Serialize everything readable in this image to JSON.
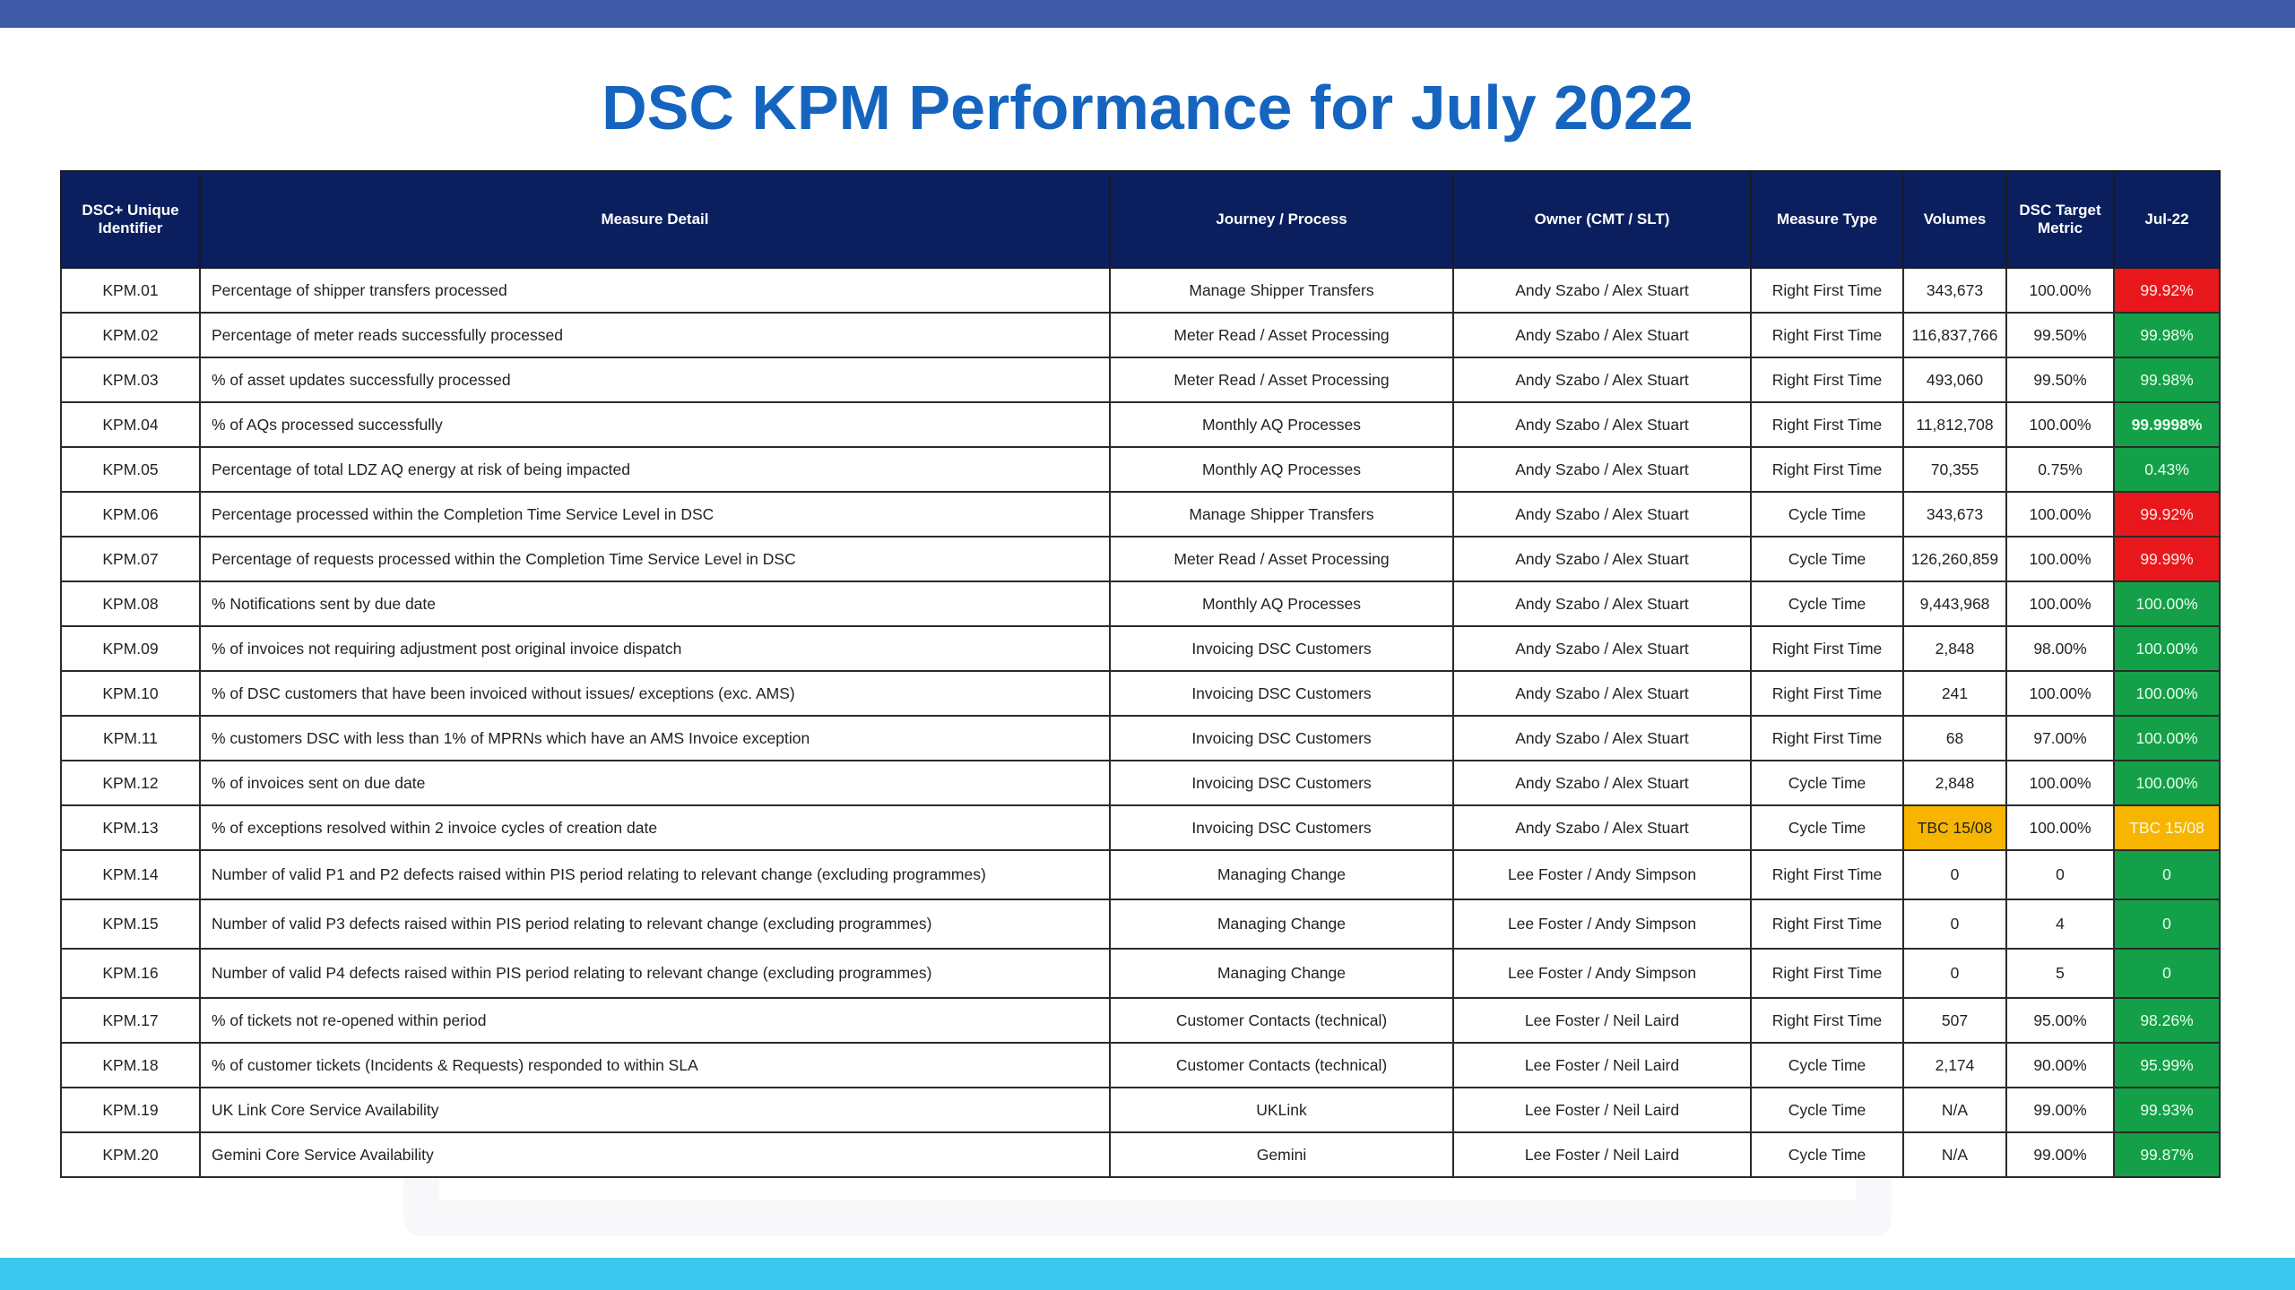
{
  "title": "DSC KPM Performance for July 2022",
  "colors": {
    "header_bg": "#0b1f5e",
    "title": "#1565c0",
    "top_band": "#3e5aa6",
    "bottom_band": "#3bc8ee",
    "red": "#e8171b",
    "green": "#14a048",
    "amber": "#f7b500"
  },
  "headers": {
    "id": "DSC+ Unique Identifier",
    "detail": "Measure Detail",
    "journey": "Journey / Process",
    "owner": "Owner (CMT / SLT)",
    "type": "Measure Type",
    "volumes": "Volumes",
    "target": "DSC Target Metric",
    "month": "Jul-22"
  },
  "rows": [
    {
      "id": "KPM.01",
      "detail": "Percentage of shipper transfers processed",
      "journey": "Manage Shipper Transfers",
      "owner": "Andy Szabo / Alex Stuart",
      "type": "Right First Time",
      "volumes": "343,673",
      "target": "100.00%",
      "result": "99.92%",
      "status": "red"
    },
    {
      "id": "KPM.02",
      "detail": "Percentage of meter reads successfully processed",
      "journey": "Meter Read / Asset Processing",
      "owner": "Andy Szabo / Alex Stuart",
      "type": "Right First Time",
      "volumes": "116,837,766",
      "target": "99.50%",
      "result": "99.98%",
      "status": "green"
    },
    {
      "id": "KPM.03",
      "detail": "% of asset updates successfully processed",
      "journey": "Meter Read / Asset Processing",
      "owner": "Andy Szabo / Alex Stuart",
      "type": "Right First Time",
      "volumes": "493,060",
      "target": "99.50%",
      "result": "99.98%",
      "status": "green"
    },
    {
      "id": "KPM.04",
      "detail": "% of AQs processed successfully",
      "journey": "Monthly AQ Processes",
      "owner": "Andy Szabo / Alex Stuart",
      "type": "Right First Time",
      "volumes": "11,812,708",
      "target": "100.00%",
      "result": "99.9998%",
      "status": "green"
    },
    {
      "id": "KPM.05",
      "detail": "Percentage of total LDZ AQ energy at risk of being impacted",
      "journey": "Monthly AQ Processes",
      "owner": "Andy Szabo / Alex Stuart",
      "type": "Right First Time",
      "volumes": "70,355",
      "target": "0.75%",
      "result": "0.43%",
      "status": "green"
    },
    {
      "id": "KPM.06",
      "detail": "Percentage processed within the Completion Time Service Level in DSC",
      "journey": "Manage Shipper Transfers",
      "owner": "Andy Szabo / Alex Stuart",
      "type": "Cycle Time",
      "volumes": "343,673",
      "target": "100.00%",
      "result": "99.92%",
      "status": "red"
    },
    {
      "id": "KPM.07",
      "detail": "Percentage of requests processed within the Completion Time Service Level in DSC",
      "journey": "Meter Read / Asset Processing",
      "owner": "Andy Szabo / Alex Stuart",
      "type": "Cycle Time",
      "volumes": "126,260,859",
      "target": "100.00%",
      "result": "99.99%",
      "status": "red"
    },
    {
      "id": "KPM.08",
      "detail": "% Notifications sent by due date",
      "journey": "Monthly AQ Processes",
      "owner": "Andy Szabo / Alex Stuart",
      "type": "Cycle Time",
      "volumes": "9,443,968",
      "target": "100.00%",
      "result": "100.00%",
      "status": "green"
    },
    {
      "id": "KPM.09",
      "detail": "% of invoices not requiring adjustment post original invoice dispatch",
      "journey": "Invoicing DSC Customers",
      "owner": "Andy Szabo / Alex Stuart",
      "type": "Right First Time",
      "volumes": "2,848",
      "target": "98.00%",
      "result": "100.00%",
      "status": "green"
    },
    {
      "id": "KPM.10",
      "detail": "% of DSC customers that have been invoiced without issues/ exceptions (exc. AMS)",
      "journey": "Invoicing DSC Customers",
      "owner": "Andy Szabo / Alex Stuart",
      "type": "Right First Time",
      "volumes": "241",
      "target": "100.00%",
      "result": "100.00%",
      "status": "green"
    },
    {
      "id": "KPM.11",
      "detail": "% customers DSC with less than 1% of MPRNs which have an AMS Invoice exception",
      "journey": "Invoicing DSC Customers",
      "owner": "Andy Szabo / Alex Stuart",
      "type": "Right First Time",
      "volumes": "68",
      "target": "97.00%",
      "result": "100.00%",
      "status": "green"
    },
    {
      "id": "KPM.12",
      "detail": "% of invoices sent on due date",
      "journey": "Invoicing DSC Customers",
      "owner": "Andy Szabo / Alex Stuart",
      "type": "Cycle Time",
      "volumes": "2,848",
      "target": "100.00%",
      "result": "100.00%",
      "status": "green"
    },
    {
      "id": "KPM.13",
      "detail": "% of exceptions resolved within 2 invoice cycles of creation date",
      "journey": "Invoicing DSC Customers",
      "owner": "Andy Szabo / Alex Stuart",
      "type": "Cycle Time",
      "volumes": "TBC 15/08",
      "volumes_status": "amber",
      "target": "100.00%",
      "result": "TBC 15/08",
      "status": "amber"
    },
    {
      "id": "KPM.14",
      "detail": "Number of valid P1 and P2 defects raised within PIS period relating to relevant change (excluding programmes)",
      "journey": "Managing Change",
      "owner": "Lee Foster / Andy Simpson",
      "type": "Right First Time",
      "volumes": "0",
      "target": "0",
      "result": "0",
      "status": "green",
      "tall": true
    },
    {
      "id": "KPM.15",
      "detail": "Number of valid P3 defects raised within PIS period relating to relevant change (excluding programmes)",
      "journey": "Managing Change",
      "owner": "Lee Foster / Andy Simpson",
      "type": "Right First Time",
      "volumes": "0",
      "target": "4",
      "result": "0",
      "status": "green",
      "tall": true
    },
    {
      "id": "KPM.16",
      "detail": "Number of valid P4 defects raised within PIS period relating to relevant change (excluding programmes)",
      "journey": "Managing Change",
      "owner": "Lee Foster / Andy Simpson",
      "type": "Right First Time",
      "volumes": "0",
      "target": "5",
      "result": "0",
      "status": "green",
      "tall": true
    },
    {
      "id": "KPM.17",
      "detail": "% of tickets not re-opened within period",
      "journey": "Customer Contacts (technical)",
      "owner": "Lee Foster / Neil Laird",
      "type": "Right First Time",
      "volumes": "507",
      "target": "95.00%",
      "result": "98.26%",
      "status": "green"
    },
    {
      "id": "KPM.18",
      "detail": "% of customer tickets (Incidents & Requests) responded to within SLA",
      "journey": "Customer Contacts (technical)",
      "owner": "Lee Foster / Neil Laird",
      "type": "Cycle Time",
      "volumes": "2,174",
      "target": "90.00%",
      "result": "95.99%",
      "status": "green"
    },
    {
      "id": "KPM.19",
      "detail": "UK Link Core Service Availability",
      "journey": "UKLink",
      "owner": "Lee Foster / Neil Laird",
      "type": "Cycle Time",
      "volumes": "N/A",
      "target": "99.00%",
      "result": "99.93%",
      "status": "green"
    },
    {
      "id": "KPM.20",
      "detail": "Gemini Core Service Availability",
      "journey": "Gemini",
      "owner": "Lee Foster / Neil Laird",
      "type": "Cycle Time",
      "volumes": "N/A",
      "target": "99.00%",
      "result": "99.87%",
      "status": "green"
    }
  ]
}
